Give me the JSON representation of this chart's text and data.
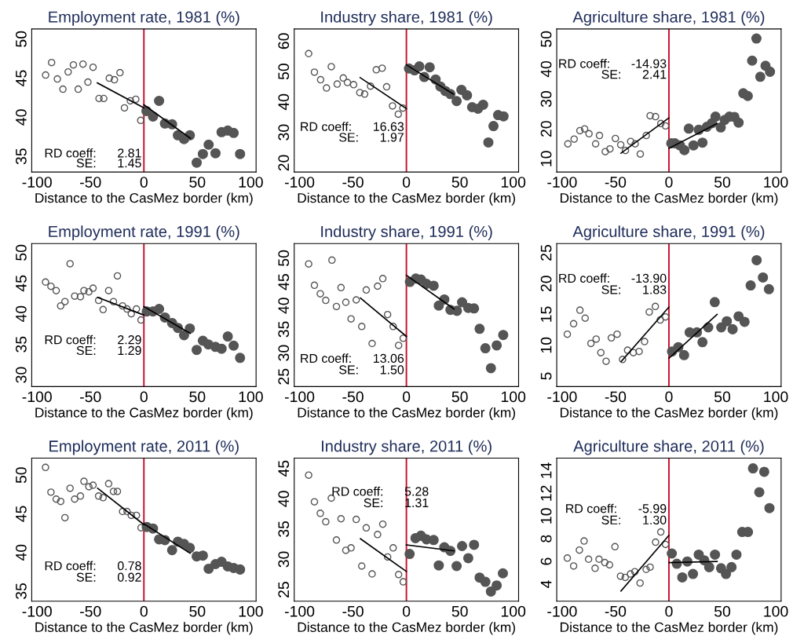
{
  "chart_data": [
    {
      "type": "scatter",
      "title": "Employment rate, 1981 (%)",
      "xlabel": "Distance to the CasMez border (km)",
      "xlim": [
        -105,
        105
      ],
      "xticks": [
        -100,
        -50,
        0,
        50,
        100
      ],
      "ylim": [
        33,
        51.3
      ],
      "yticks": [
        35,
        40,
        45,
        50
      ],
      "marker": "circle",
      "ref_lines": [
        {
          "axis": "x",
          "value": 0,
          "color": "#c8102e"
        }
      ],
      "annotations": [
        "RD coeff:      2.81",
        "SE:      1.45"
      ],
      "series": [
        {
          "type": "scatter",
          "color": "#555555",
          "x": [
            -92,
            -86.4,
            -81,
            -75.8,
            -70.9,
            -66,
            -61.5,
            -57,
            -52.4,
            -47.6,
            -42,
            -37.6,
            -32.4,
            -27.6,
            -22.4,
            -18.2,
            -12.7,
            -7.6,
            -3
          ],
          "values": [
            45.4,
            47.0,
            44.9,
            43.6,
            45.8,
            46.7,
            43.6,
            46.8,
            44.5,
            46.4,
            42.4,
            42.4,
            45.0,
            44.8,
            45.7,
            41.2,
            42.1,
            42.3,
            39.6
          ]
        },
        {
          "type": "scatter",
          "color": "#555555",
          "x": [
            2.4,
            8.5,
            14.2,
            19.7,
            26.4,
            31.8,
            37.6,
            43,
            49.4,
            55.2,
            60.6,
            67,
            72.7,
            78.5,
            84,
            90
          ],
          "values": [
            40.8,
            40.1,
            42.1,
            39.2,
            39.1,
            37.7,
            37.2,
            37.7,
            34.2,
            35.3,
            36.5,
            35.4,
            38.1,
            38.3,
            38.0,
            35.3
          ]
        },
        {
          "type": "line",
          "marker": "none",
          "color": "#000000",
          "x": [
            -43.6,
            0
          ],
          "values": [
            44.4,
            41.2
          ]
        },
        {
          "type": "line",
          "marker": "none",
          "color": "#000000",
          "x": [
            0,
            43.6
          ],
          "values": [
            41.6,
            37.3
          ]
        }
      ]
    },
    {
      "type": "scatter",
      "title": "Industry share, 1981 (%)",
      "xlabel": "Distance to the CasMez border (km)",
      "xlim": [
        -105,
        105
      ],
      "xticks": [
        -100,
        -50,
        0,
        50,
        100
      ],
      "ylim": [
        17,
        64
      ],
      "yticks": [
        20,
        30,
        40,
        50,
        60
      ],
      "marker": "circle",
      "ref_lines": [
        {
          "axis": "x",
          "value": 0,
          "color": "#c8102e"
        }
      ],
      "annotations": [
        "RD coeff:      16.63",
        "SE:      1.97"
      ],
      "series": [
        {
          "type": "scatter",
          "color": "#555555",
          "x": [
            -91.5,
            -86.1,
            -80.3,
            -74.8,
            -70.3,
            -64.8,
            -59.1,
            -55.2,
            -49.4,
            -43.6,
            -39.1,
            -33.6,
            -28.2,
            -22.7,
            -18.5,
            -13,
            -7.6,
            -3.3
          ],
          "values": [
            55.9,
            49.8,
            47.3,
            44.6,
            51.6,
            45.9,
            47.9,
            46.4,
            45.7,
            43.1,
            42.6,
            45.2,
            50.6,
            51.1,
            45.0,
            38.7,
            36.0,
            38.0
          ]
        },
        {
          "type": "scatter",
          "color": "#555555",
          "x": [
            2.4,
            7.6,
            12.1,
            16.7,
            21.8,
            27.3,
            31.8,
            36.4,
            41.2,
            47,
            51.5,
            56.7,
            61.5,
            67,
            71.8,
            76.7,
            81.5,
            85.8,
            90.9
          ],
          "values": [
            51.0,
            50.4,
            51.7,
            48.2,
            51.4,
            47.4,
            45.1,
            43.6,
            42.6,
            40.3,
            44.0,
            42.2,
            38.3,
            37.8,
            39.1,
            26.7,
            32.1,
            35.7,
            35.3
          ]
        },
        {
          "type": "line",
          "marker": "none",
          "color": "#000000",
          "x": [
            -43.3,
            0
          ],
          "values": [
            48.0,
            37.8
          ]
        },
        {
          "type": "line",
          "marker": "none",
          "color": "#000000",
          "x": [
            0,
            43.9
          ],
          "values": [
            52.2,
            42.6
          ]
        }
      ]
    },
    {
      "type": "scatter",
      "title": "Agriculture share, 1981 (%)",
      "xlabel": "Distance to the CasMez border (km)",
      "xlim": [
        -105,
        105
      ],
      "xticks": [
        -100,
        -50,
        0,
        50,
        100
      ],
      "ylim": [
        5.6,
        53.4
      ],
      "yticks": [
        10,
        20,
        30,
        40,
        50
      ],
      "marker": "circle",
      "ref_lines": [
        {
          "axis": "x",
          "value": 0,
          "color": "#c8102e"
        }
      ],
      "annotations": [
        "RD coeff:      -14.93",
        "SE:      2.41"
      ],
      "series": [
        {
          "type": "scatter",
          "color": "#555555",
          "x": [
            -94.6,
            -88.7,
            -83.3,
            -78.9,
            -74.8,
            -68.6,
            -65,
            -59.6,
            -55.2,
            -50.1,
            -45.1,
            -40.7,
            -35.8,
            -31.6,
            -26.8,
            -21.2,
            -17.6,
            -12.5,
            -7.6,
            -3.2
          ],
          "values": [
            15.0,
            16.6,
            19.4,
            20.0,
            18.4,
            15.0,
            17.8,
            12.4,
            13.3,
            16.8,
            14.7,
            12.8,
            15.8,
            15.0,
            11.6,
            17.8,
            24.4,
            24.1,
            21.8,
            21.0
          ]
        },
        {
          "type": "scatter",
          "color": "#555555",
          "x": [
            2.2,
            5.6,
            10.3,
            14.5,
            18.6,
            23,
            27.9,
            31.4,
            35.5,
            40.2,
            43.6,
            48.5,
            52.2,
            56.6,
            61.3,
            65.2,
            69.6,
            73.8,
            77.9,
            81.9,
            85.5,
            90.4,
            94.6
          ],
          "values": [
            15.2,
            15.2,
            14.5,
            12.9,
            20.1,
            14.5,
            19.7,
            15.4,
            20.7,
            21.9,
            24.1,
            20.5,
            23.0,
            24.1,
            24.0,
            22.1,
            31.9,
            31.0,
            42.8,
            50.2,
            37.4,
            41.1,
            39.1
          ]
        },
        {
          "type": "line",
          "marker": "none",
          "color": "#000000",
          "x": [
            -44.9,
            0
          ],
          "values": [
            11.9,
            23.7
          ]
        },
        {
          "type": "line",
          "marker": "none",
          "color": "#000000",
          "x": [
            0,
            45.1
          ],
          "values": [
            13.5,
            21.8
          ]
        }
      ]
    },
    {
      "type": "scatter",
      "title": "Employment rate, 1991 (%)",
      "xlabel": "Distance to the CasMez border (km)",
      "xlim": [
        -105,
        105
      ],
      "xticks": [
        -100,
        -50,
        0,
        50,
        100
      ],
      "ylim": [
        28.1,
        51.5
      ],
      "yticks": [
        30,
        35,
        40,
        45,
        50
      ],
      "marker": "circle",
      "ref_lines": [
        {
          "axis": "x",
          "value": 0,
          "color": "#c8102e"
        }
      ],
      "annotations": [
        "RD coeff:      2.29",
        "SE:      1.29"
      ],
      "series": [
        {
          "type": "scatter",
          "color": "#555555",
          "x": [
            -92.1,
            -87,
            -82.1,
            -77.9,
            -73.9,
            -69.1,
            -64.8,
            -59.4,
            -56.1,
            -51.5,
            -47.6,
            -42.4,
            -38.2,
            -33,
            -28.5,
            -24.8,
            -20,
            -15.8,
            -11.8,
            -7,
            -2.7
          ],
          "values": [
            45.2,
            44.5,
            43.8,
            41.3,
            42.0,
            48.2,
            42.9,
            42.8,
            43.8,
            43.6,
            44.2,
            42.2,
            40.7,
            43.8,
            42.0,
            46.2,
            41.3,
            40.8,
            40.0,
            40.8,
            39.0
          ]
        },
        {
          "type": "scatter",
          "color": "#555555",
          "x": [
            2.7,
            8.5,
            14.2,
            19.7,
            26.4,
            31.8,
            37.6,
            43,
            49.4,
            55.2,
            60.3,
            67,
            72.7,
            78.5,
            84,
            90
          ],
          "values": [
            40.4,
            40.4,
            40.8,
            39.4,
            38.5,
            37.7,
            36.5,
            37.6,
            34.1,
            35.6,
            35.0,
            34.6,
            34.3,
            36.3,
            34.8,
            32.8
          ]
        },
        {
          "type": "line",
          "marker": "none",
          "color": "#000000",
          "x": [
            -43.3,
            0
          ],
          "values": [
            42.7,
            39.8
          ]
        },
        {
          "type": "line",
          "marker": "none",
          "color": "#000000",
          "x": [
            0,
            43.3
          ],
          "values": [
            41.2,
            36.8
          ]
        }
      ]
    },
    {
      "type": "scatter",
      "title": "Industry share, 1991 (%)",
      "xlabel": "Distance to the CasMez border (km)",
      "xlim": [
        -105,
        105
      ],
      "xticks": [
        -100,
        -50,
        0,
        50,
        100
      ],
      "ylim": [
        22.9,
        53.1
      ],
      "yticks": [
        25,
        30,
        35,
        40,
        45,
        50
      ],
      "marker": "circle",
      "ref_lines": [
        {
          "axis": "x",
          "value": 0,
          "color": "#c8102e"
        }
      ],
      "annotations": [
        "RD coeff:      13.06",
        "SE:      1.50"
      ],
      "series": [
        {
          "type": "scatter",
          "color": "#555555",
          "x": [
            -91.5,
            -86.1,
            -80.6,
            -75.5,
            -69.7,
            -65.5,
            -61.2,
            -56.7,
            -51.8,
            -47,
            -41.8,
            -37.6,
            -32.1,
            -27,
            -22.1,
            -17.6,
            -12.4,
            -7.3,
            -3
          ],
          "values": [
            48.8,
            44.3,
            42.5,
            41.1,
            49.6,
            39.8,
            43.8,
            40.7,
            37.2,
            41.2,
            35.6,
            43.3,
            32.0,
            44.1,
            45.7,
            38.1,
            35.6,
            31.6,
            33.1
          ]
        },
        {
          "type": "scatter",
          "color": "#555555",
          "x": [
            3.3,
            8.8,
            13.6,
            18.8,
            25.5,
            30.3,
            35.5,
            41.2,
            47.3,
            52.1,
            57.9,
            63.3,
            68.5,
            73.9,
            79.1,
            84.5,
            90.6
          ],
          "values": [
            45.0,
            45.7,
            45.5,
            44.6,
            44.2,
            40.0,
            41.3,
            39.1,
            38.9,
            40.7,
            39.5,
            39.4,
            35.1,
            31.0,
            26.8,
            31.6,
            33.8
          ]
        },
        {
          "type": "line",
          "marker": "none",
          "color": "#000000",
          "x": [
            -43,
            0
          ],
          "values": [
            41.6,
            33.5
          ]
        },
        {
          "type": "line",
          "marker": "none",
          "color": "#000000",
          "x": [
            0,
            44.5
          ],
          "values": [
            46.4,
            39.3
          ]
        }
      ]
    },
    {
      "type": "scatter",
      "title": "Agriculture share, 1991 (%)",
      "xlabel": "Distance to the CasMez border (km)",
      "xlim": [
        -105,
        105
      ],
      "xticks": [
        -100,
        -50,
        0,
        50,
        100
      ],
      "ylim": [
        3.3,
        26.5
      ],
      "yticks": [
        5,
        10,
        15,
        20,
        25
      ],
      "marker": "circle",
      "ref_lines": [
        {
          "axis": "x",
          "value": 0,
          "color": "#c8102e"
        }
      ],
      "annotations": [
        "RD coeff:      -13.90",
        "SE:      1.83"
      ],
      "series": [
        {
          "type": "scatter",
          "color": "#555555",
          "x": [
            -95.1,
            -89.2,
            -83.3,
            -78.4,
            -73,
            -68.1,
            -63.7,
            -58.8,
            -53.9,
            -48.5,
            -43.4,
            -38.7,
            -33.3,
            -27.9,
            -22.8,
            -18.4,
            -12.7,
            -8.1,
            -3.2
          ],
          "values": [
            11.8,
            13.5,
            15.7,
            14.4,
            10.3,
            11.0,
            8.8,
            7.4,
            11.2,
            11.8,
            7.7,
            9.2,
            8.8,
            9.0,
            10.6,
            15.4,
            16.3,
            14.1,
            14.6
          ]
        },
        {
          "type": "scatter",
          "color": "#555555",
          "x": [
            2.9,
            8.8,
            14.2,
            19.4,
            26.2,
            31.4,
            36.8,
            42.9,
            49,
            54.2,
            59.6,
            65.2,
            70.8,
            76.5,
            82.1,
            88,
            93.6
          ],
          "values": [
            9.0,
            9.7,
            8.4,
            12.1,
            12.1,
            10.5,
            12.9,
            17.0,
            12.9,
            13.9,
            12.6,
            14.7,
            13.8,
            19.7,
            23.8,
            21.0,
            19.1
          ]
        },
        {
          "type": "line",
          "marker": "none",
          "color": "#000000",
          "x": [
            -44.6,
            0
          ],
          "values": [
            7.4,
            16.2
          ]
        },
        {
          "type": "line",
          "marker": "none",
          "color": "#000000",
          "x": [
            0,
            45.1
          ],
          "values": [
            7.9,
            15.0
          ]
        }
      ]
    },
    {
      "type": "scatter",
      "title": "Employment rate, 2011 (%)",
      "xlabel": "Distance to the CasMez border (km)",
      "xlim": [
        -105,
        105
      ],
      "xticks": [
        -100,
        -50,
        0,
        50,
        100
      ],
      "ylim": [
        33.7,
        52.2
      ],
      "yticks": [
        35,
        40,
        45,
        50
      ],
      "marker": "circle",
      "ref_lines": [
        {
          "axis": "x",
          "value": 0,
          "color": "#c8102e"
        }
      ],
      "annotations": [
        "RD coeff:      0.78",
        "SE:      0.92"
      ],
      "series": [
        {
          "type": "scatter",
          "color": "#555555",
          "x": [
            -92.1,
            -87,
            -82.1,
            -77.9,
            -73.9,
            -69.1,
            -64.8,
            -59.4,
            -56.1,
            -51.5,
            -47.6,
            -42.4,
            -38.2,
            -33,
            -28.5,
            -24.8,
            -20,
            -15.8,
            -11.8,
            -7,
            -2.7
          ],
          "values": [
            51.0,
            47.8,
            46.9,
            46.6,
            44.5,
            48.3,
            46.9,
            47.3,
            49.2,
            48.5,
            48.7,
            47.3,
            47.1,
            48.9,
            47.9,
            47.9,
            45.3,
            45.3,
            44.8,
            44.8,
            43.2
          ]
        },
        {
          "type": "scatter",
          "color": "#555555",
          "x": [
            2.7,
            8.5,
            14.2,
            19.7,
            26.4,
            31.8,
            37.6,
            43,
            49.4,
            55.2,
            60.6,
            67,
            72.7,
            78.5,
            84,
            90
          ],
          "values": [
            43.3,
            43.1,
            41.7,
            41.6,
            40.3,
            41.4,
            41.1,
            40.6,
            39.5,
            39.6,
            37.9,
            38.5,
            38.8,
            38.2,
            38.0,
            37.8
          ]
        },
        {
          "type": "line",
          "marker": "none",
          "color": "#000000",
          "x": [
            -43.3,
            0
          ],
          "values": [
            48.3,
            43.6
          ]
        },
        {
          "type": "line",
          "marker": "none",
          "color": "#000000",
          "x": [
            0,
            43.3
          ],
          "values": [
            43.7,
            39.9
          ]
        }
      ]
    },
    {
      "type": "scatter",
      "title": "Industry share, 2011 (%)",
      "xlabel": "Distance to the CasMez border (km)",
      "xlim": [
        -105,
        105
      ],
      "xticks": [
        -100,
        -50,
        0,
        50,
        100
      ],
      "ylim": [
        23.1,
        46.7
      ],
      "yticks": [
        25,
        30,
        35,
        40,
        45
      ],
      "marker": "circle",
      "ref_lines": [
        {
          "axis": "x",
          "value": 0,
          "color": "#c8102e"
        }
      ],
      "annotations": [
        "RD coeff:      5.28",
        "SE:      1.31"
      ],
      "series": [
        {
          "type": "scatter",
          "color": "#555555",
          "x": [
            -91.5,
            -86.1,
            -80.6,
            -75.5,
            -70.3,
            -65.5,
            -61.2,
            -56.7,
            -51.8,
            -47,
            -41.8,
            -37.6,
            -32.1,
            -27,
            -22.1,
            -17.6,
            -12.4,
            -7.3,
            -3
          ],
          "values": [
            43.9,
            39.5,
            37.6,
            36.2,
            40.1,
            33.2,
            36.7,
            31.5,
            31.9,
            36.6,
            28.9,
            35.2,
            27.6,
            34.1,
            35.8,
            30.4,
            31.9,
            27.5,
            26.3
          ]
        },
        {
          "type": "scatter",
          "color": "#555555",
          "x": [
            3,
            8.5,
            13.6,
            18.8,
            25.5,
            30.3,
            35.5,
            41.2,
            47,
            52.1,
            57.9,
            63.3,
            68.5,
            73.9,
            79.1,
            84.5,
            90.3
          ],
          "values": [
            30.9,
            33.5,
            33.9,
            33.3,
            33.2,
            29.0,
            32.0,
            31.4,
            28.9,
            32.2,
            30.2,
            32.4,
            27.0,
            26.3,
            24.7,
            25.7,
            27.7
          ]
        },
        {
          "type": "line",
          "marker": "none",
          "color": "#000000",
          "x": [
            -43,
            0
          ],
          "values": [
            33.4,
            28.0
          ]
        },
        {
          "type": "line",
          "marker": "none",
          "color": "#000000",
          "x": [
            0,
            44.5
          ],
          "values": [
            32.4,
            31.4
          ]
        }
      ]
    },
    {
      "type": "scatter",
      "title": "Agriculture share, 2011 (%)",
      "xlabel": "Distance to the CasMez border (km)",
      "xlim": [
        -105,
        105
      ],
      "xticks": [
        -100,
        -50,
        0,
        50,
        100
      ],
      "ylim": [
        2.5,
        15.1
      ],
      "yticks": [
        4,
        6,
        8,
        10,
        12,
        14
      ],
      "marker": "circle",
      "ref_lines": [
        {
          "axis": "x",
          "value": 0,
          "color": "#c8102e"
        }
      ],
      "annotations": [
        "RD coeff:      -5.99",
        "SE:      1.30"
      ],
      "series": [
        {
          "type": "scatter",
          "color": "#555555",
          "x": [
            -95.1,
            -89.2,
            -83.8,
            -79.4,
            -75.2,
            -69.1,
            -65.4,
            -60,
            -55.6,
            -50.5,
            -45.3,
            -40.9,
            -36,
            -31.9,
            -27,
            -21.3,
            -17.6,
            -12.5,
            -7.6,
            -3.2
          ],
          "values": [
            6.3,
            5.6,
            7.0,
            7.8,
            6.2,
            5.4,
            6.2,
            5.9,
            5.7,
            7.3,
            4.7,
            4.6,
            4.9,
            5.1,
            4.1,
            5.3,
            5.5,
            7.7,
            8.6,
            7.5
          ]
        },
        {
          "type": "scatter",
          "color": "#555555",
          "x": [
            2.7,
            7.4,
            12.5,
            17.2,
            22.5,
            27.9,
            33.1,
            37.7,
            43.1,
            48.8,
            53.4,
            58.6,
            63.2,
            68.6,
            74,
            78.7,
            84.6,
            89.2,
            94.1
          ],
          "values": [
            6.7,
            5.8,
            4.6,
            6.0,
            4.9,
            6.6,
            6.1,
            5.5,
            6.6,
            5.4,
            4.9,
            5.5,
            6.6,
            8.6,
            8.6,
            14.2,
            12.1,
            13.9,
            10.7
          ]
        },
        {
          "type": "line",
          "marker": "none",
          "color": "#000000",
          "x": [
            -44.9,
            0
          ],
          "values": [
            3.4,
            8.3
          ]
        },
        {
          "type": "line",
          "marker": "none",
          "color": "#000000",
          "x": [
            0,
            45.1
          ],
          "values": [
            5.9,
            6.0
          ]
        }
      ]
    }
  ]
}
